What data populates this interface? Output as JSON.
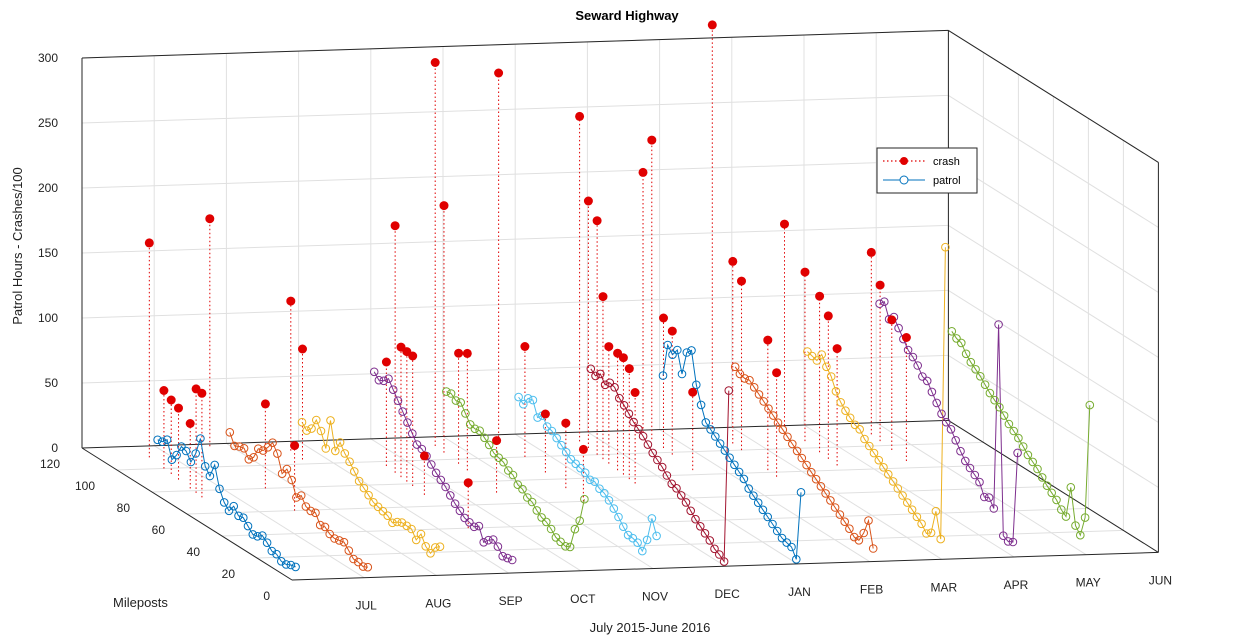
{
  "chart_data": {
    "type": "3d-line-stem",
    "title": "Seward Highway",
    "xlabel": "July 2015-June 2016",
    "ylabel": "Mileposts",
    "zlabel": "Patrol Hours - Crashes/100",
    "months": [
      "JUL",
      "AUG",
      "SEP",
      "OCT",
      "NOV",
      "DEC",
      "JAN",
      "FEB",
      "MAR",
      "APR",
      "MAY",
      "JUN"
    ],
    "milepost_ticks": [
      "0",
      "20",
      "40",
      "60",
      "80",
      "100",
      "120"
    ],
    "z_ticks": [
      "0",
      "50",
      "100",
      "150",
      "200",
      "250",
      "300"
    ],
    "xlim": [
      0,
      12
    ],
    "ylim": [
      0,
      120
    ],
    "zlim": [
      0,
      300
    ],
    "legend": {
      "placement": "upper-right",
      "entries": [
        {
          "label": "crash",
          "style": "dotted red stem with filled red marker",
          "color": "#e00000"
        },
        {
          "label": "patrol",
          "style": "line with open circle markers",
          "color": "#0072bd"
        }
      ]
    },
    "patrol_mileposts": [
      0,
      4,
      8,
      12,
      16,
      20,
      24,
      28,
      32,
      36,
      40,
      44,
      48,
      52,
      56,
      60,
      64,
      68,
      72,
      76,
      80,
      84,
      88,
      92,
      96,
      100,
      104,
      108,
      112,
      116
    ],
    "patrol_series": [
      {
        "month": "JUL",
        "color": "#0072bd",
        "values": [
          10,
          8,
          5,
          4,
          6,
          5,
          8,
          10,
          6,
          4,
          7,
          10,
          8,
          12,
          5,
          8,
          15,
          30,
          18,
          22,
          40,
          25,
          15,
          20,
          20,
          10,
          3,
          15,
          10,
          8
        ]
      },
      {
        "month": "AUG",
        "color": "#d95319",
        "values": [
          8,
          5,
          5,
          4,
          7,
          10,
          8,
          6,
          6,
          8,
          6,
          12,
          10,
          10,
          15,
          10,
          20,
          25,
          18,
          30,
          35,
          28,
          22,
          20,
          10,
          5,
          10,
          8,
          5,
          12
        ]
      },
      {
        "month": "SEP",
        "color": "#edb120",
        "values": [
          22,
          18,
          10,
          12,
          18,
          10,
          15,
          14,
          13,
          10,
          6,
          8,
          8,
          8,
          8,
          10,
          12,
          14,
          18,
          22,
          25,
          30,
          20,
          40,
          15,
          25,
          30,
          20,
          15,
          18
        ]
      },
      {
        "month": "OCT",
        "color": "#7e2f8e",
        "values": [
          10,
          8,
          6,
          10,
          12,
          8,
          3,
          12,
          8,
          8,
          8,
          10,
          12,
          15,
          18,
          20,
          22,
          25,
          28,
          30,
          30,
          35,
          40,
          45,
          50,
          55,
          60,
          55,
          52,
          55
        ]
      },
      {
        "month": "NOV",
        "color": "#77ac30",
        "values": [
          55,
          35,
          25,
          8,
          5,
          5,
          5,
          8,
          10,
          10,
          12,
          15,
          15,
          18,
          18,
          22,
          22,
          25,
          25,
          25,
          28,
          30,
          32,
          30,
          30,
          35,
          40,
          38,
          40,
          38
        ]
      },
      {
        "month": "DEC",
        "color": "#4dbeee",
        "values": [
          25,
          35,
          15,
          3,
          6,
          6,
          5,
          8,
          12,
          15,
          18,
          20,
          20,
          22,
          20,
          22,
          22,
          22,
          22,
          24,
          26,
          28,
          30,
          30,
          35,
          30,
          40,
          38,
          30,
          32
        ]
      },
      {
        "month": "JAN",
        "color": "#a2142f",
        "values": [
          135,
          0,
          2,
          3,
          6,
          8,
          10,
          12,
          15,
          18,
          20,
          22,
          22,
          25,
          28,
          30,
          32,
          35,
          38,
          40,
          42,
          45,
          48,
          50,
          55,
          55,
          50,
          55,
          50,
          52
        ]
      },
      {
        "month": "FEB",
        "color": "#0072bd",
        "values": [
          55,
          0,
          6,
          6,
          6,
          8,
          10,
          12,
          14,
          16,
          18,
          20,
          24,
          26,
          28,
          30,
          32,
          34,
          36,
          38,
          40,
          50,
          62,
          85,
          80,
          60,
          75,
          68,
          72,
          45
        ]
      },
      {
        "month": "MAR",
        "color": "#d95319",
        "values": [
          10,
          28,
          15,
          6,
          5,
          8,
          10,
          12,
          14,
          16,
          18,
          20,
          22,
          24,
          26,
          28,
          30,
          32,
          34,
          36,
          38,
          40,
          42,
          44,
          46,
          48,
          50,
          48,
          48,
          50
        ]
      },
      {
        "month": "APR",
        "color": "#edb120",
        "values": [
          240,
          12,
          30,
          10,
          6,
          10,
          12,
          14,
          16,
          18,
          20,
          22,
          24,
          26,
          28,
          30,
          32,
          34,
          38,
          38,
          40,
          42,
          45,
          50,
          58,
          62,
          68,
          60,
          60,
          60
        ]
      },
      {
        "month": "MAY",
        "color": "#7e2f8e",
        "values": [
          80,
          8,
          5,
          6,
          165,
          20,
          25,
          22,
          30,
          32,
          34,
          36,
          40,
          45,
          50,
          52,
          55,
          60,
          65,
          70,
          70,
          75,
          78,
          80,
          85,
          90,
          95,
          90,
          100,
          95
        ]
      },
      {
        "month": "JUN",
        "color": "#77ac30",
        "values": [
          115,
          25,
          8,
          12,
          38,
          12,
          14,
          18,
          20,
          22,
          25,
          28,
          30,
          32,
          35,
          38,
          40,
          42,
          45,
          48,
          50,
          52,
          55,
          58,
          60,
          62,
          65,
          70,
          70,
          72
        ]
      }
    ],
    "crash_points": [
      {
        "month": "JUL",
        "milepost": 110,
        "value": 165
      },
      {
        "month": "JUL",
        "milepost": 100,
        "value": 60
      },
      {
        "month": "JUL",
        "milepost": 95,
        "value": 57
      },
      {
        "month": "JUL",
        "milepost": 90,
        "value": 55
      },
      {
        "month": "JUL",
        "milepost": 82,
        "value": 50
      },
      {
        "month": "JUL",
        "milepost": 78,
        "value": 80
      },
      {
        "month": "JUL",
        "milepost": 74,
        "value": 80
      },
      {
        "month": "AUG",
        "milepost": 118,
        "value": 175
      },
      {
        "month": "AUG",
        "milepost": 80,
        "value": 65
      },
      {
        "month": "AUG",
        "milepost": 60,
        "value": 50
      },
      {
        "month": "SEP",
        "milepost": 112,
        "value": 115
      },
      {
        "month": "SEP",
        "milepost": 104,
        "value": 85
      },
      {
        "month": "OCT",
        "milepost": 96,
        "value": 80
      },
      {
        "month": "OCT",
        "milepost": 90,
        "value": 190
      },
      {
        "month": "OCT",
        "milepost": 86,
        "value": 100
      },
      {
        "month": "OCT",
        "milepost": 82,
        "value": 100
      },
      {
        "month": "OCT",
        "milepost": 78,
        "value": 100
      },
      {
        "month": "OCT",
        "milepost": 70,
        "value": 30
      },
      {
        "month": "OCT",
        "milepost": 40,
        "value": 35
      },
      {
        "month": "NOV",
        "milepost": 112,
        "value": 295
      },
      {
        "month": "NOV",
        "milepost": 106,
        "value": 190
      },
      {
        "month": "NOV",
        "milepost": 96,
        "value": 85
      },
      {
        "month": "NOV",
        "milepost": 90,
        "value": 90
      },
      {
        "month": "NOV",
        "milepost": 70,
        "value": 40
      },
      {
        "month": "DEC",
        "milepost": 118,
        "value": 280
      },
      {
        "month": "DEC",
        "milepost": 100,
        "value": 85
      },
      {
        "month": "DEC",
        "milepost": 86,
        "value": 45
      },
      {
        "month": "DEC",
        "milepost": 72,
        "value": 50
      },
      {
        "month": "DEC",
        "milepost": 60,
        "value": 40
      },
      {
        "month": "JAN",
        "milepost": 112,
        "value": 250
      },
      {
        "month": "JAN",
        "milepost": 106,
        "value": 190
      },
      {
        "month": "JAN",
        "milepost": 100,
        "value": 180
      },
      {
        "month": "JAN",
        "milepost": 96,
        "value": 125
      },
      {
        "month": "JAN",
        "milepost": 92,
        "value": 90
      },
      {
        "month": "JAN",
        "milepost": 86,
        "value": 90
      },
      {
        "month": "JAN",
        "milepost": 82,
        "value": 90
      },
      {
        "month": "JAN",
        "milepost": 78,
        "value": 85
      },
      {
        "month": "JAN",
        "milepost": 74,
        "value": 70
      },
      {
        "month": "FEB",
        "milepost": 118,
        "value": 200
      },
      {
        "month": "FEB",
        "milepost": 112,
        "value": 230
      },
      {
        "month": "FEB",
        "milepost": 104,
        "value": 100
      },
      {
        "month": "FEB",
        "milepost": 98,
        "value": 95
      },
      {
        "month": "FEB",
        "milepost": 84,
        "value": 60
      },
      {
        "month": "MAR",
        "milepost": 120,
        "value": 310
      },
      {
        "month": "MAR",
        "milepost": 106,
        "value": 140
      },
      {
        "month": "MAR",
        "milepost": 100,
        "value": 130
      },
      {
        "month": "MAR",
        "milepost": 82,
        "value": 100
      },
      {
        "month": "MAR",
        "milepost": 76,
        "value": 80
      },
      {
        "month": "APR",
        "milepost": 120,
        "value": 155
      },
      {
        "month": "APR",
        "milepost": 106,
        "value": 130
      },
      {
        "month": "APR",
        "milepost": 96,
        "value": 120
      },
      {
        "month": "APR",
        "milepost": 90,
        "value": 110
      },
      {
        "month": "APR",
        "milepost": 84,
        "value": 90
      },
      {
        "month": "MAY",
        "milepost": 110,
        "value": 140
      },
      {
        "month": "MAY",
        "milepost": 104,
        "value": 120
      },
      {
        "month": "MAY",
        "milepost": 96,
        "value": 100
      },
      {
        "month": "MAY",
        "milepost": 86,
        "value": 95
      }
    ]
  }
}
